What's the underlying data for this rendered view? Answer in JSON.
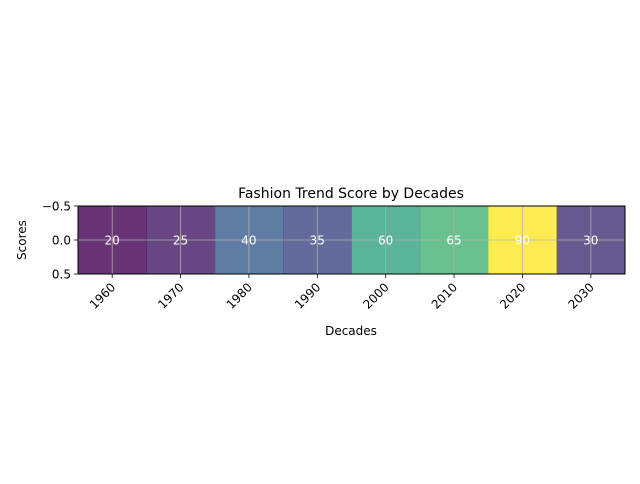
{
  "chart_data": {
    "type": "heatmap",
    "title": "Fashion Trend Score by Decades",
    "xlabel": "Decades",
    "ylabel": "Scores",
    "categories": [
      "1960",
      "1970",
      "1980",
      "1990",
      "2000",
      "2010",
      "2020",
      "2030"
    ],
    "values": [
      20,
      25,
      40,
      35,
      60,
      65,
      90,
      30
    ],
    "yticks": [
      "−0.5",
      "0.0",
      "0.5"
    ],
    "ylim": [
      0.5,
      -0.5
    ],
    "colormap": "viridis",
    "cell_opacity": 0.8,
    "grid": true,
    "value_label_color": "#ffffff",
    "xtick_rotation_deg": 45
  }
}
